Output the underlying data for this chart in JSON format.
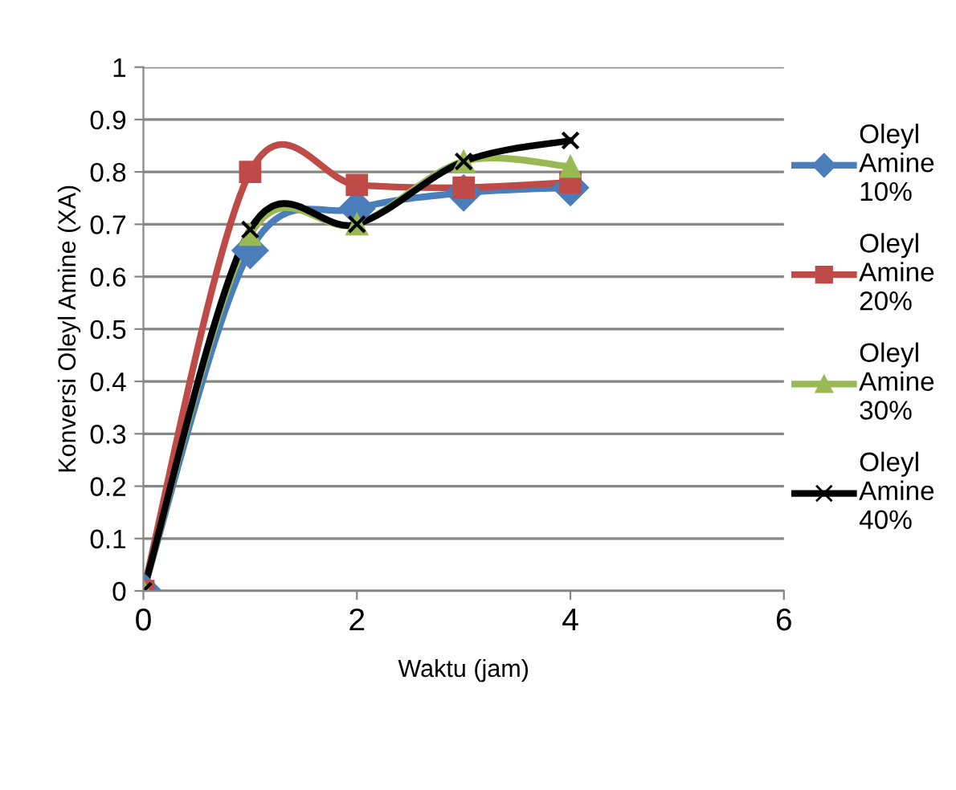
{
  "chart_data": {
    "type": "line",
    "xlabel": "Waktu (jam)",
    "ylabel": "Konversi Oleyl Amine (XA)",
    "x": [
      0,
      1,
      2,
      3,
      4
    ],
    "series": [
      {
        "name": "Oleyl Amine 10%",
        "color": "#4a7ebb",
        "marker": "diamond",
        "values": [
          0,
          0.65,
          0.73,
          0.76,
          0.77
        ]
      },
      {
        "name": "Oleyl Amine 20%",
        "color": "#be4b48",
        "marker": "square",
        "values": [
          0,
          0.8,
          0.775,
          0.77,
          0.78
        ]
      },
      {
        "name": "Oleyl Amine 30%",
        "color": "#98b954",
        "marker": "triangle",
        "values": [
          0,
          0.68,
          0.7,
          0.82,
          0.81
        ]
      },
      {
        "name": "Oleyl Amine 40%",
        "color": "#000000",
        "marker": "cross",
        "values": [
          0,
          0.69,
          0.7,
          0.82,
          0.86
        ]
      }
    ],
    "xlim": [
      0,
      6
    ],
    "xticks": [
      0,
      2,
      4,
      6
    ],
    "ylim": [
      0,
      1
    ],
    "yticks": [
      0,
      0.1,
      0.2,
      0.3,
      0.4,
      0.5,
      0.6,
      0.7,
      0.8,
      0.9,
      1
    ],
    "grid": "y",
    "legend": "right",
    "line_style": "solid"
  }
}
